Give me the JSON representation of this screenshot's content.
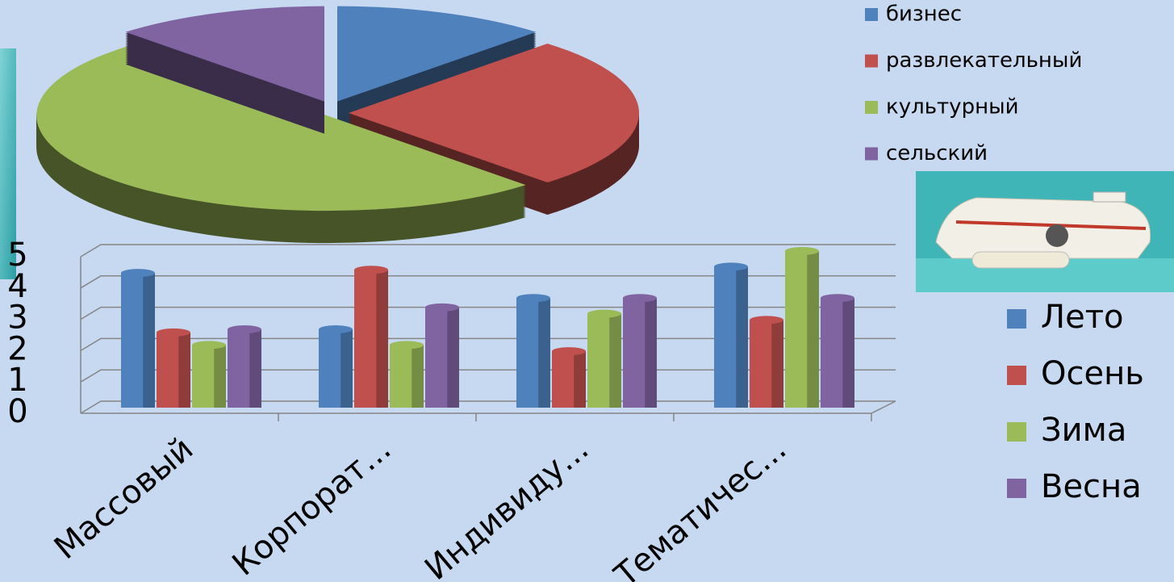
{
  "chart_data": [
    {
      "type": "pie",
      "categories": [
        "бизнес",
        "развлекательный",
        "культурный",
        "сельский"
      ],
      "values": [
        12,
        26,
        50,
        12
      ],
      "colors": [
        "#4f81bd",
        "#c0504d",
        "#9bbb59",
        "#8064a2"
      ],
      "legend": "top-right"
    },
    {
      "type": "bar",
      "categories": [
        "Массовый",
        "Корпорат...",
        "Индивиду...",
        "Тематичес..."
      ],
      "series": [
        {
          "name": "Лето",
          "color": "#4f81bd",
          "values": [
            4.3,
            2.5,
            3.5,
            4.5
          ]
        },
        {
          "name": "Осень",
          "color": "#c0504d",
          "values": [
            2.4,
            4.4,
            1.8,
            2.8
          ]
        },
        {
          "name": "Зима",
          "color": "#9bbb59",
          "values": [
            2.0,
            2.0,
            3.0,
            5.0
          ]
        },
        {
          "name": "Весна",
          "color": "#8064a2",
          "values": [
            2.5,
            3.2,
            3.5,
            3.5
          ]
        }
      ],
      "ylim": [
        0,
        5
      ],
      "yticks": [
        0,
        1,
        2,
        3,
        4,
        5
      ],
      "grid": true,
      "legend": "right"
    }
  ]
}
